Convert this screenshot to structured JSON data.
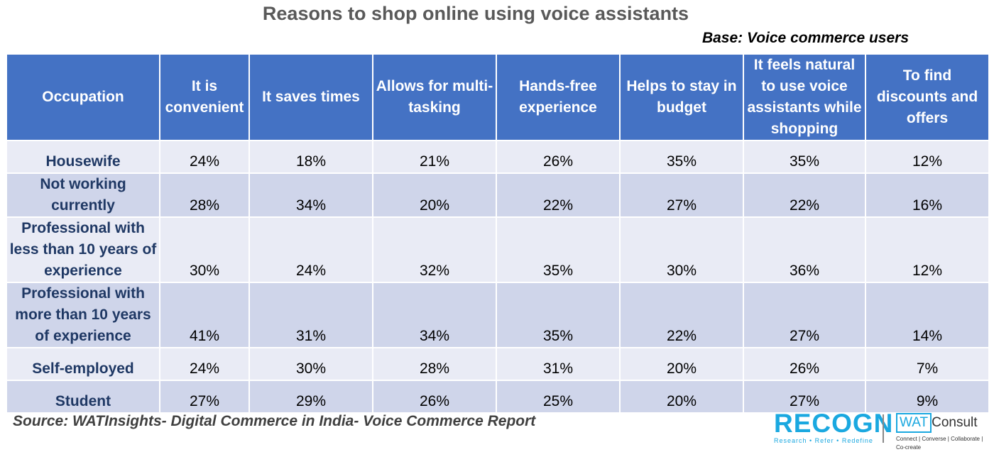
{
  "chart_data": {
    "type": "table",
    "title": "Reasons to shop online using voice assistants",
    "subtitle": "Base: Voice commerce users",
    "columns": [
      "Occupation",
      "It is convenient",
      "It saves times",
      "Allows for multi-tasking",
      "Hands-free experience",
      "Helps to stay in budget",
      "It feels natural to use voice assistants while shopping",
      "To find discounts and offers"
    ],
    "rows": [
      [
        "Housewife",
        "24%",
        "18%",
        "21%",
        "26%",
        "35%",
        "35%",
        "12%"
      ],
      [
        "Not working currently",
        "28%",
        "34%",
        "20%",
        "22%",
        "27%",
        "22%",
        "16%"
      ],
      [
        "Professional with less than 10 years of experience",
        "30%",
        "24%",
        "32%",
        "35%",
        "30%",
        "36%",
        "12%"
      ],
      [
        "Professional with more than 10 years of experience",
        "41%",
        "31%",
        "34%",
        "35%",
        "22%",
        "27%",
        "14%"
      ],
      [
        "Self-employed",
        "24%",
        "30%",
        "28%",
        "31%",
        "20%",
        "26%",
        "7%"
      ],
      [
        "Student",
        "27%",
        "29%",
        "26%",
        "25%",
        "20%",
        "27%",
        "9%"
      ]
    ],
    "source": "Source: WATInsights- Digital Commerce in India- Voice Commerce Report"
  },
  "logos": {
    "recogn": "RECOGN",
    "recogn_tagline": "Research • Refer • Redefine",
    "wat": "WAT",
    "consult": "Consult",
    "wat_tagline": "Connect | Converse | Collaborate | Co-create"
  },
  "colors": {
    "header_fill": "#4472C4",
    "row_fill_light": "#E9EBF5",
    "row_fill_dark": "#CFD5EA",
    "occupation_text": "#1F3864",
    "brand_blue": "#1AA8E0"
  }
}
